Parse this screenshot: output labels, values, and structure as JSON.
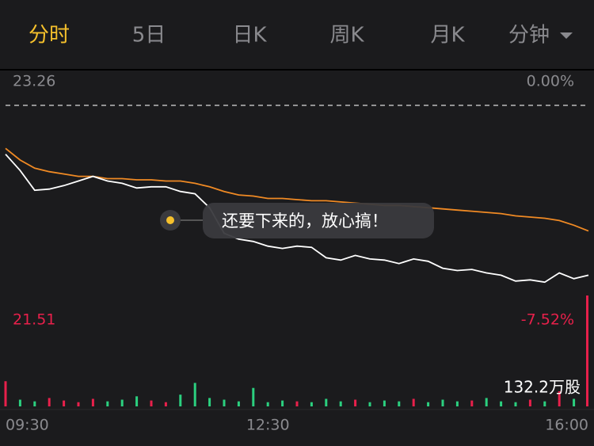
{
  "tabs": [
    "分时",
    "5日",
    "日K",
    "周K",
    "月K",
    "分钟"
  ],
  "chart_data": {
    "type": "line",
    "categories": [
      "09:30",
      null,
      null,
      null,
      null,
      null,
      null,
      null,
      null,
      null,
      null,
      null,
      null,
      null,
      null,
      null,
      null,
      null,
      "12:30",
      null,
      null,
      null,
      null,
      null,
      null,
      null,
      null,
      null,
      null,
      null,
      null,
      null,
      null,
      null,
      null,
      null,
      null,
      null,
      null,
      null,
      "16:00"
    ],
    "series": [
      {
        "color": "#ffffff",
        "values": [
          22.84,
          22.7,
          22.53,
          22.54,
          22.57,
          22.61,
          22.65,
          22.61,
          22.59,
          22.55,
          22.56,
          22.56,
          22.52,
          22.5,
          22.38,
          22.16,
          22.11,
          22.09,
          22.05,
          22.03,
          22.05,
          22.04,
          21.95,
          21.93,
          21.97,
          21.94,
          21.93,
          21.9,
          21.94,
          21.92,
          21.86,
          21.84,
          21.85,
          21.82,
          21.8,
          21.75,
          21.76,
          21.74,
          21.82,
          21.77,
          21.8
        ]
      },
      {
        "color": "#f08a24",
        "values": [
          22.89,
          22.79,
          22.72,
          22.69,
          22.67,
          22.65,
          22.65,
          22.63,
          22.63,
          22.62,
          22.62,
          22.61,
          22.61,
          22.59,
          22.56,
          22.52,
          22.49,
          22.48,
          22.46,
          22.46,
          22.45,
          22.44,
          22.44,
          22.43,
          22.42,
          22.41,
          22.4,
          22.4,
          22.39,
          22.38,
          22.37,
          22.36,
          22.35,
          22.34,
          22.33,
          22.31,
          22.3,
          22.29,
          22.27,
          22.23,
          22.18
        ]
      }
    ],
    "ylim": [
      21.51,
      23.26
    ],
    "yticks": [
      23.26,
      21.51
    ],
    "y2lim": [
      -7.52,
      0
    ],
    "y2ticks": [
      {
        "value": 0,
        "label": "0.00%"
      },
      {
        "value": -7.52,
        "label": "-7.52%"
      }
    ],
    "volume": {
      "values": [
        30,
        8,
        6,
        10,
        7,
        5,
        9,
        6,
        8,
        12,
        7,
        5,
        14,
        28,
        10,
        8,
        6,
        22,
        5,
        7,
        6,
        5,
        9,
        6,
        8,
        5,
        7,
        6,
        9,
        5,
        8,
        6,
        7,
        10,
        6,
        5,
        8,
        6,
        18,
        9,
        132.2
      ],
      "up_color": "#e8204b",
      "down_color": "#2bd07f",
      "ylim": [
        0,
        132.2
      ],
      "ticks": [
        {
          "value": 132.2,
          "label": "132.2万股"
        }
      ]
    },
    "annotation": "还要下来的，放心搞！"
  }
}
